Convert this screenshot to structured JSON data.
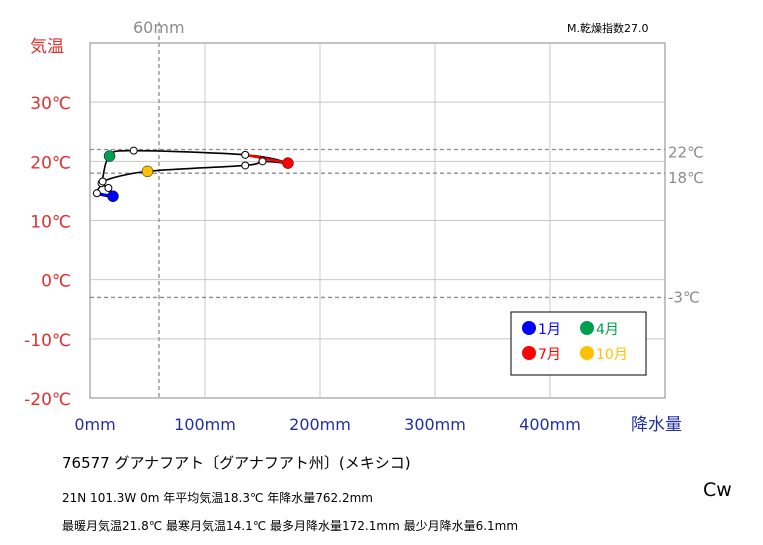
{
  "chart_data": {
    "type": "line",
    "ylabel": "気温",
    "xlabel": "降水量",
    "xlim": [
      0,
      500
    ],
    "ylim": [
      -20,
      40
    ],
    "x_ticks": [
      "0mm",
      "100mm",
      "200mm",
      "300mm",
      "400mm"
    ],
    "x_tick_values": [
      0,
      100,
      200,
      300,
      400
    ],
    "y_ticks": [
      "-20℃",
      "-10℃",
      "0℃",
      "10℃",
      "20℃",
      "30℃"
    ],
    "y_tick_values": [
      -20,
      -10,
      0,
      10,
      20,
      30
    ],
    "reference_lines": [
      {
        "axis": "x",
        "value": 60,
        "label": "60mm"
      },
      {
        "axis": "y",
        "value": 22,
        "label": "22℃"
      },
      {
        "axis": "y",
        "value": 18,
        "label": "18℃"
      },
      {
        "axis": "y",
        "value": -3,
        "label": "-3℃"
      }
    ],
    "dryness_index": "M.乾燥指数27.0",
    "grid": true,
    "legend_position": "lower-right",
    "legend": [
      {
        "label": "1月",
        "color": "#0000ff"
      },
      {
        "label": "4月",
        "color": "#00a050"
      },
      {
        "label": "7月",
        "color": "#ff0000"
      },
      {
        "label": "10月",
        "color": "#ffc000"
      }
    ],
    "points": [
      {
        "month": 1,
        "precip": 20,
        "temp": 14.1
      },
      {
        "month": 2,
        "precip": 6,
        "temp": 14.6
      },
      {
        "month": 3,
        "precip": 10,
        "temp": 16.3
      },
      {
        "month": 4,
        "precip": 17,
        "temp": 20.9
      },
      {
        "month": 5,
        "precip": 38,
        "temp": 21.8
      },
      {
        "month": 6,
        "precip": 135,
        "temp": 21.1
      },
      {
        "month": 7,
        "precip": 172.1,
        "temp": 19.7
      },
      {
        "month": 8,
        "precip": 150,
        "temp": 20.0
      },
      {
        "month": 9,
        "precip": 135,
        "temp": 19.3
      },
      {
        "month": 10,
        "precip": 50,
        "temp": 18.3
      },
      {
        "month": 11,
        "precip": 11,
        "temp": 16.6
      },
      {
        "month": 12,
        "precip": 16,
        "temp": 15.5
      }
    ]
  },
  "station": "76577 グアナフアト〔グアナフアト州〕(メキシコ)",
  "stats": {
    "line1": "21N 101.3W 0m 年平均気温18.3℃ 年降水量762.2mm",
    "line2": "最暖月気温21.8℃ 最寒月気温14.1℃ 最多月降水量172.1mm 最少月降水量6.1mm"
  },
  "climate_class": "Cw",
  "colors": {
    "temp_axis": "#e03030",
    "precip_axis": "#2030a0",
    "grid": "#c8c8c8",
    "ref": "#8c8c8c"
  }
}
